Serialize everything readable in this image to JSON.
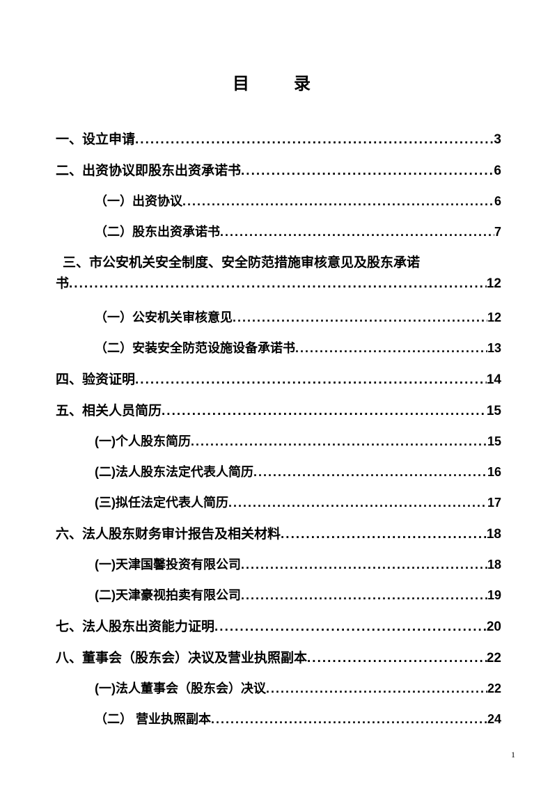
{
  "title": "目　录",
  "entries": [
    {
      "label": "一、设立申请",
      "page": "3",
      "level": 1
    },
    {
      "label": "二、出资协议即股东出资承诺书",
      "page": "6",
      "level": 1
    },
    {
      "label": "（一）出资协议",
      "page": "6",
      "level": 2
    },
    {
      "label": "（二）股东出资承诺书",
      "page": "7",
      "level": 2
    },
    {
      "wrap": true,
      "firstLine": "三、市公安机关安全制度、安全防范措施审核意见及股东承诺",
      "secondLabel": "书",
      "page": "12",
      "level": 1
    },
    {
      "label": "（一）公安机关审核意见",
      "page": "12",
      "level": 2
    },
    {
      "label": "（二）安装安全防范设施设备承诺书",
      "page": "13",
      "level": 2
    },
    {
      "label": "四、验资证明",
      "page": "14",
      "level": 1
    },
    {
      "label": "五、相关人员简历",
      "page": "15",
      "level": 1
    },
    {
      "label": "(一)个人股东简历",
      "page": "15",
      "level": 2
    },
    {
      "label": "(二)法人股东法定代表人简历",
      "page": "16",
      "level": 2
    },
    {
      "label": "(三)拟任法定代表人简历",
      "page": "17",
      "level": 2
    },
    {
      "label": "六、法人股东财务审计报告及相关材料",
      "page": "18",
      "level": 1
    },
    {
      "label": "(一)天津国馨投资有限公司",
      "page": "18",
      "level": 2
    },
    {
      "label": "(二)天津豪视拍卖有限公司",
      "page": "19",
      "level": 2
    },
    {
      "label": "七、法人股东出资能力证明",
      "page": "20",
      "level": 1
    },
    {
      "label": "八、董事会（股东会）决议及营业执照副本",
      "page": "22",
      "level": 1
    },
    {
      "label": "(一)法人董事会（股东会）决议",
      "page": "22",
      "level": 2
    },
    {
      "label": "（二） 营业执照副本",
      "page": "24",
      "level": 2
    }
  ],
  "pageNumber": "1",
  "dots": "............................................................................................................................"
}
